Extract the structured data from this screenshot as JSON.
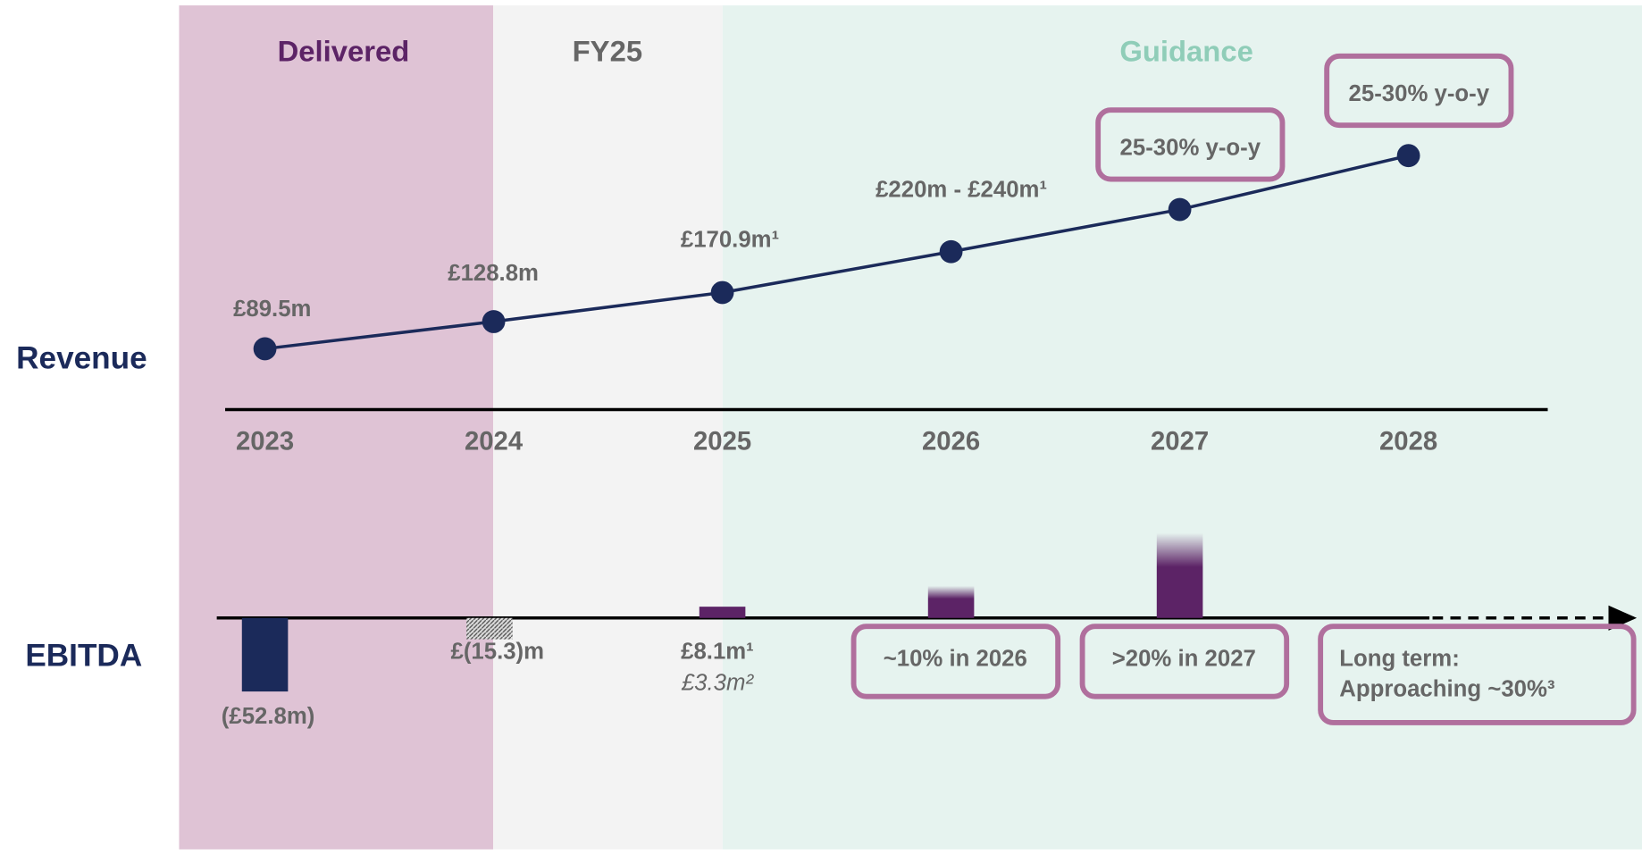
{
  "periods": [
    {
      "label": "Delivered",
      "color": "#dfc3d5",
      "text_color": "#5c2366"
    },
    {
      "label": "FY25",
      "color": "#f3f3f3",
      "text_color": "#666666"
    },
    {
      "label": "Guidance",
      "color": "#e6f3ef",
      "text_color": "#8fcdb8"
    }
  ],
  "chart_data": [
    {
      "type": "line",
      "label": "Revenue",
      "color": "#1b2a5a",
      "categories": [
        "2023",
        "2024",
        "2025",
        "2026",
        "2027",
        "2028"
      ],
      "values": [
        89.5,
        128.8,
        170.9,
        230,
        291,
        369
      ],
      "value_labels": [
        "£89.5m",
        "£128.8m",
        "£170.9m¹",
        "£220m - £240m¹",
        null,
        null
      ],
      "annotations": [
        null,
        null,
        null,
        null,
        "25-30% y-o-y",
        "25-30% y-o-y"
      ]
    },
    {
      "type": "bar",
      "label": "EBITDA",
      "values": [
        -52.8,
        -15.3,
        8.1,
        23,
        61
      ],
      "value_labels": [
        "(£52.8m)",
        "£(15.3)m",
        "£8.1m¹",
        null,
        null
      ],
      "sub_labels": [
        null,
        null,
        "£3.3m²",
        null,
        null
      ],
      "colors": [
        "#1b2a5a",
        "#8a8a8a",
        "#5c2366",
        "#5c2366",
        "#5c2366"
      ],
      "styles": [
        "solid",
        "hatched",
        "solid",
        "faded",
        "faded"
      ],
      "annotations": [
        null,
        null,
        null,
        "~10% in 2026",
        ">20% in 2027"
      ],
      "long_term": [
        "Long term:",
        "Approaching ~30%³"
      ]
    }
  ]
}
